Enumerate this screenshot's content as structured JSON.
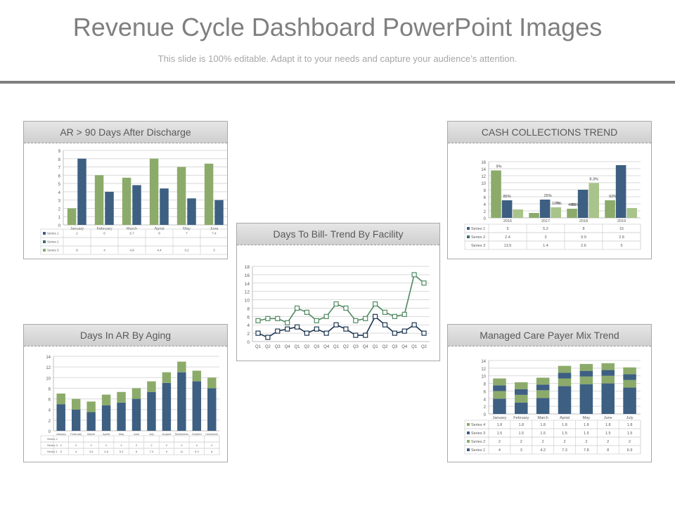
{
  "title": "Revenue Cycle Dashboard PowerPoint Images",
  "subtitle": "This slide is 100% editable. Adapt it to your needs and capture your audience’s attention.",
  "colors": {
    "blue": "#3d5f82",
    "green": "#8cab6a",
    "teal": "#3d6b6b",
    "dark": "#1c3550",
    "lightgreen": "#a9c48a"
  },
  "panels": {
    "ar90": {
      "heading": "AR > 90 Days After Discharge"
    },
    "cash": {
      "heading": "CASH COLLECTIONS TREND"
    },
    "dtb": {
      "heading": "Days To Bill- Trend By Facility"
    },
    "aging": {
      "heading": "Days In AR By Aging"
    },
    "payer": {
      "heading": "Managed Care Payer Mix Trend"
    }
  },
  "chart_data": [
    {
      "id": "ar90",
      "type": "bar",
      "categories": [
        "January",
        "February",
        "March",
        "Aprial",
        "May",
        "June"
      ],
      "series": [
        {
          "name": "Series 1",
          "values": [
            2,
            6,
            5.7,
            8,
            7,
            7.4
          ]
        },
        {
          "name": "Series 2",
          "values": [
            null,
            null,
            null,
            null,
            null,
            null
          ]
        },
        {
          "name": "Series 3",
          "values": [
            8,
            4,
            4.8,
            4.4,
            3.2,
            3
          ]
        }
      ],
      "ylim": [
        0,
        9
      ]
    },
    {
      "id": "cash",
      "type": "bar",
      "categories": [
        "2016",
        "2017",
        "2018",
        "2019"
      ],
      "series": [
        {
          "name": "Series 1",
          "values": [
            5,
            5.2,
            8,
            15
          ]
        },
        {
          "name": "Series 2",
          "values": [
            2.4,
            3,
            9.9,
            2.8
          ]
        },
        {
          "name": "Series 3",
          "values": [
            13.5,
            1.4,
            2.6,
            5
          ]
        }
      ],
      "annotations": [
        "9%",
        "85%",
        "25%",
        "10%",
        "7%",
        "40%",
        "45%",
        "8.3%",
        "92%"
      ],
      "ylim": [
        0,
        16
      ]
    },
    {
      "id": "dtb",
      "type": "line",
      "categories": [
        "Q1",
        "Q2",
        "Q3",
        "Q4",
        "Q1",
        "Q2",
        "Q3",
        "Q4",
        "Q1",
        "Q2",
        "Q3",
        "Q4",
        "Q1",
        "Q2",
        "Q3",
        "Q4",
        "Q1",
        "Q2"
      ],
      "series": [
        {
          "values": [
            5,
            5.5,
            5.5,
            4.5,
            8,
            7,
            5,
            6,
            9,
            8,
            5,
            5.5,
            9,
            7,
            6,
            6.5,
            16,
            14
          ]
        },
        {
          "values": [
            2,
            1,
            2.5,
            3,
            3.5,
            2,
            3,
            2,
            4,
            3,
            1.5,
            1.5,
            6,
            4,
            2,
            2.5,
            4,
            2
          ]
        }
      ],
      "ylim": [
        0,
        18
      ]
    },
    {
      "id": "aging",
      "type": "bar",
      "stacked": true,
      "categories": [
        "January",
        "February",
        "March",
        "Aprial",
        "May",
        "June",
        "July",
        "August",
        "September",
        "October",
        "november"
      ],
      "series": [
        {
          "name": "Series 1",
          "values": [
            5,
            4,
            3.5,
            4.8,
            5.3,
            6,
            7.3,
            9,
            11,
            9.3,
            8
          ]
        },
        {
          "name": "Series 2",
          "values": [
            null,
            null,
            null,
            null,
            null,
            null,
            null,
            null,
            null,
            null,
            null
          ]
        },
        {
          "name": "Series 3",
          "values": [
            2,
            2,
            2,
            2,
            2,
            2,
            2,
            2,
            2,
            2,
            2
          ]
        }
      ],
      "ylim": [
        0,
        14
      ]
    },
    {
      "id": "payer",
      "type": "bar",
      "stacked": true,
      "categories": [
        "January",
        "February",
        "March",
        "Aprial",
        "May",
        "June",
        "July"
      ],
      "series": [
        {
          "name": "Series 1",
          "values": [
            4,
            3,
            4.2,
            7.3,
            7.8,
            8,
            6.9
          ]
        },
        {
          "name": "Series 2",
          "values": [
            2,
            2,
            2,
            2,
            2,
            2,
            2
          ]
        },
        {
          "name": "Series 3",
          "values": [
            1.5,
            1.5,
            1.5,
            1.5,
            1.5,
            1.5,
            1.5
          ]
        },
        {
          "name": "Series 4",
          "values": [
            1.8,
            1.8,
            1.8,
            1.8,
            1.8,
            1.8,
            1.8
          ]
        }
      ],
      "ylim": [
        0,
        14
      ]
    }
  ]
}
